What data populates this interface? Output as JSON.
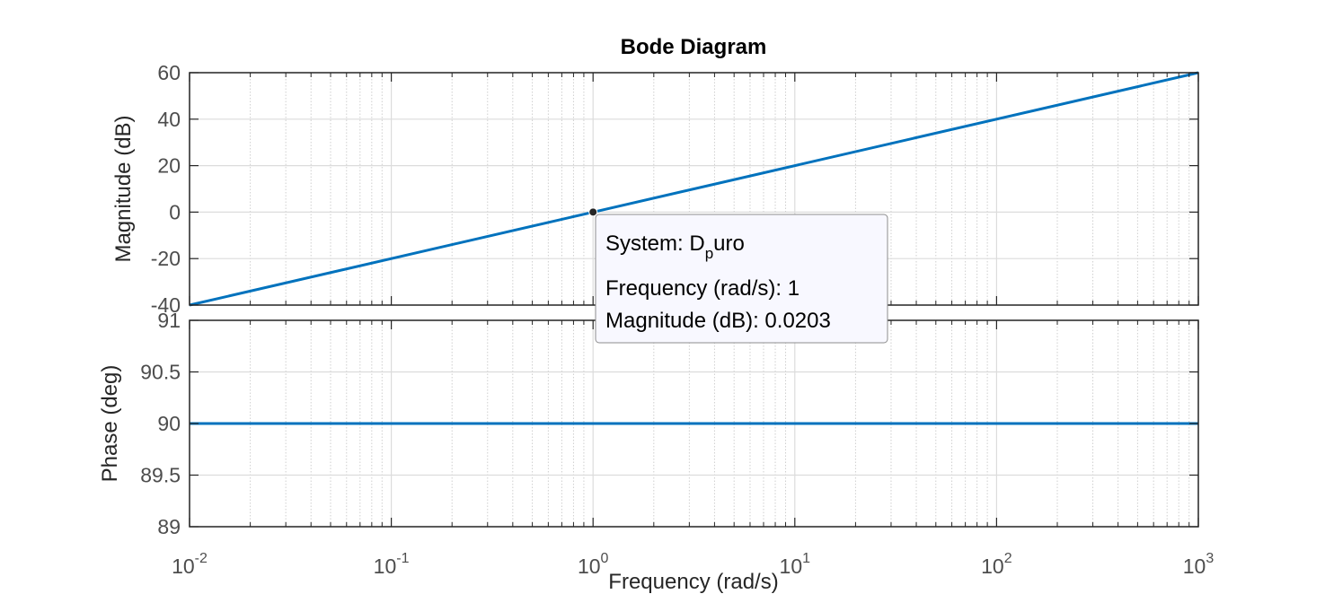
{
  "chart_data": {
    "type": "line",
    "title": "Bode Diagram",
    "xlabel": "Frequency  (rad/s)",
    "x_scale": "log",
    "xlim": [
      0.01,
      1000
    ],
    "x_ticks": [
      {
        "value": 0.01,
        "base": "10",
        "exp": "-2"
      },
      {
        "value": 0.1,
        "base": "10",
        "exp": "-1"
      },
      {
        "value": 1,
        "base": "10",
        "exp": "0"
      },
      {
        "value": 10,
        "base": "10",
        "exp": "1"
      },
      {
        "value": 100,
        "base": "10",
        "exp": "2"
      },
      {
        "value": 1000,
        "base": "10",
        "exp": "3"
      }
    ],
    "grid": true,
    "line_color": "#0072bd",
    "panels": [
      {
        "id": "magnitude",
        "ylabel": "Magnitude (dB)",
        "ylim": [
          -40,
          60
        ],
        "y_ticks": [
          -40,
          -20,
          0,
          20,
          40,
          60
        ],
        "series": [
          {
            "x": [
              0.01,
              1,
              1000
            ],
            "y": [
              -40,
              0,
              60
            ]
          }
        ]
      },
      {
        "id": "phase",
        "ylabel": "Phase (deg)",
        "ylim": [
          89,
          91
        ],
        "y_ticks": [
          89,
          89.5,
          90,
          90.5,
          91
        ],
        "series": [
          {
            "x": [
              0.01,
              1000
            ],
            "y": [
              90,
              90
            ]
          }
        ]
      }
    ],
    "datatip": {
      "x": 1,
      "y": 0.0203,
      "system_prefix": "System: D",
      "system_sub": "p",
      "system_suffix": "uro",
      "freq_line": "Frequency (rad/s): 1",
      "mag_line": "Magnitude (dB): 0.0203"
    }
  }
}
